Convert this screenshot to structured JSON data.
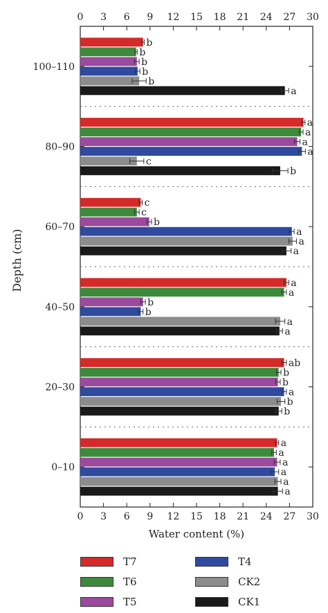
{
  "chart_data": {
    "type": "bar",
    "orientation": "horizontal",
    "xlabel": "Water content (%)",
    "ylabel": "Depth (cm)",
    "xlim": [
      0,
      30
    ],
    "xticks": [
      0,
      3,
      6,
      9,
      12,
      15,
      18,
      21,
      24,
      27,
      30
    ],
    "categories": [
      "100–110",
      "80–90",
      "60–70",
      "40–50",
      "20–30",
      "0–10"
    ],
    "series": [
      {
        "name": "T7",
        "color": "#d42a2a",
        "values": [
          8.1,
          28.8,
          7.8,
          26.6,
          26.3,
          25.4
        ],
        "errors": [
          0.15,
          0.2,
          0.2,
          0.3,
          0.3,
          0.2
        ],
        "letters": [
          "b",
          "a",
          "c",
          "a",
          "ab",
          "a"
        ]
      },
      {
        "name": "T6",
        "color": "#3d8a3d",
        "values": [
          7.2,
          28.5,
          7.3,
          26.3,
          25.6,
          25.0
        ],
        "errors": [
          0.15,
          0.25,
          0.3,
          0.3,
          0.3,
          0.3
        ],
        "letters": [
          "b",
          "a",
          "c",
          "a",
          "b",
          "a"
        ]
      },
      {
        "name": "T5",
        "color": "#9b4a9e",
        "values": [
          7.3,
          28.0,
          8.9,
          8.1,
          25.5,
          25.4
        ],
        "errors": [
          0.3,
          0.35,
          0.3,
          0.3,
          0.3,
          0.4
        ],
        "letters": [
          "b",
          "a",
          "b",
          "b",
          "b",
          "a"
        ]
      },
      {
        "name": "T4",
        "color": "#2f4a9e",
        "values": [
          7.4,
          28.6,
          27.3,
          7.8,
          26.3,
          25.1
        ],
        "errors": [
          0.3,
          0.45,
          0.3,
          0.3,
          0.3,
          0.5
        ],
        "letters": [
          "b",
          "a",
          "a",
          "b",
          "a",
          "a"
        ]
      },
      {
        "name": "CK2",
        "color": "#8c8c8c",
        "values": [
          7.6,
          7.3,
          27.4,
          25.8,
          25.9,
          25.5
        ],
        "errors": [
          0.9,
          0.9,
          0.5,
          0.6,
          0.5,
          0.4
        ],
        "letters": [
          "b",
          "c",
          "a",
          "a",
          "b",
          "a"
        ]
      },
      {
        "name": "CK1",
        "color": "#1a1a1a",
        "values": [
          26.4,
          25.8,
          26.6,
          25.7,
          25.6,
          25.5
        ],
        "errors": [
          0.5,
          1.0,
          0.6,
          0.4,
          0.4,
          0.6
        ],
        "letters": [
          "a",
          "b",
          "a",
          "a",
          "b",
          "a"
        ]
      }
    ],
    "grid": false,
    "legend_position": "bottom"
  }
}
